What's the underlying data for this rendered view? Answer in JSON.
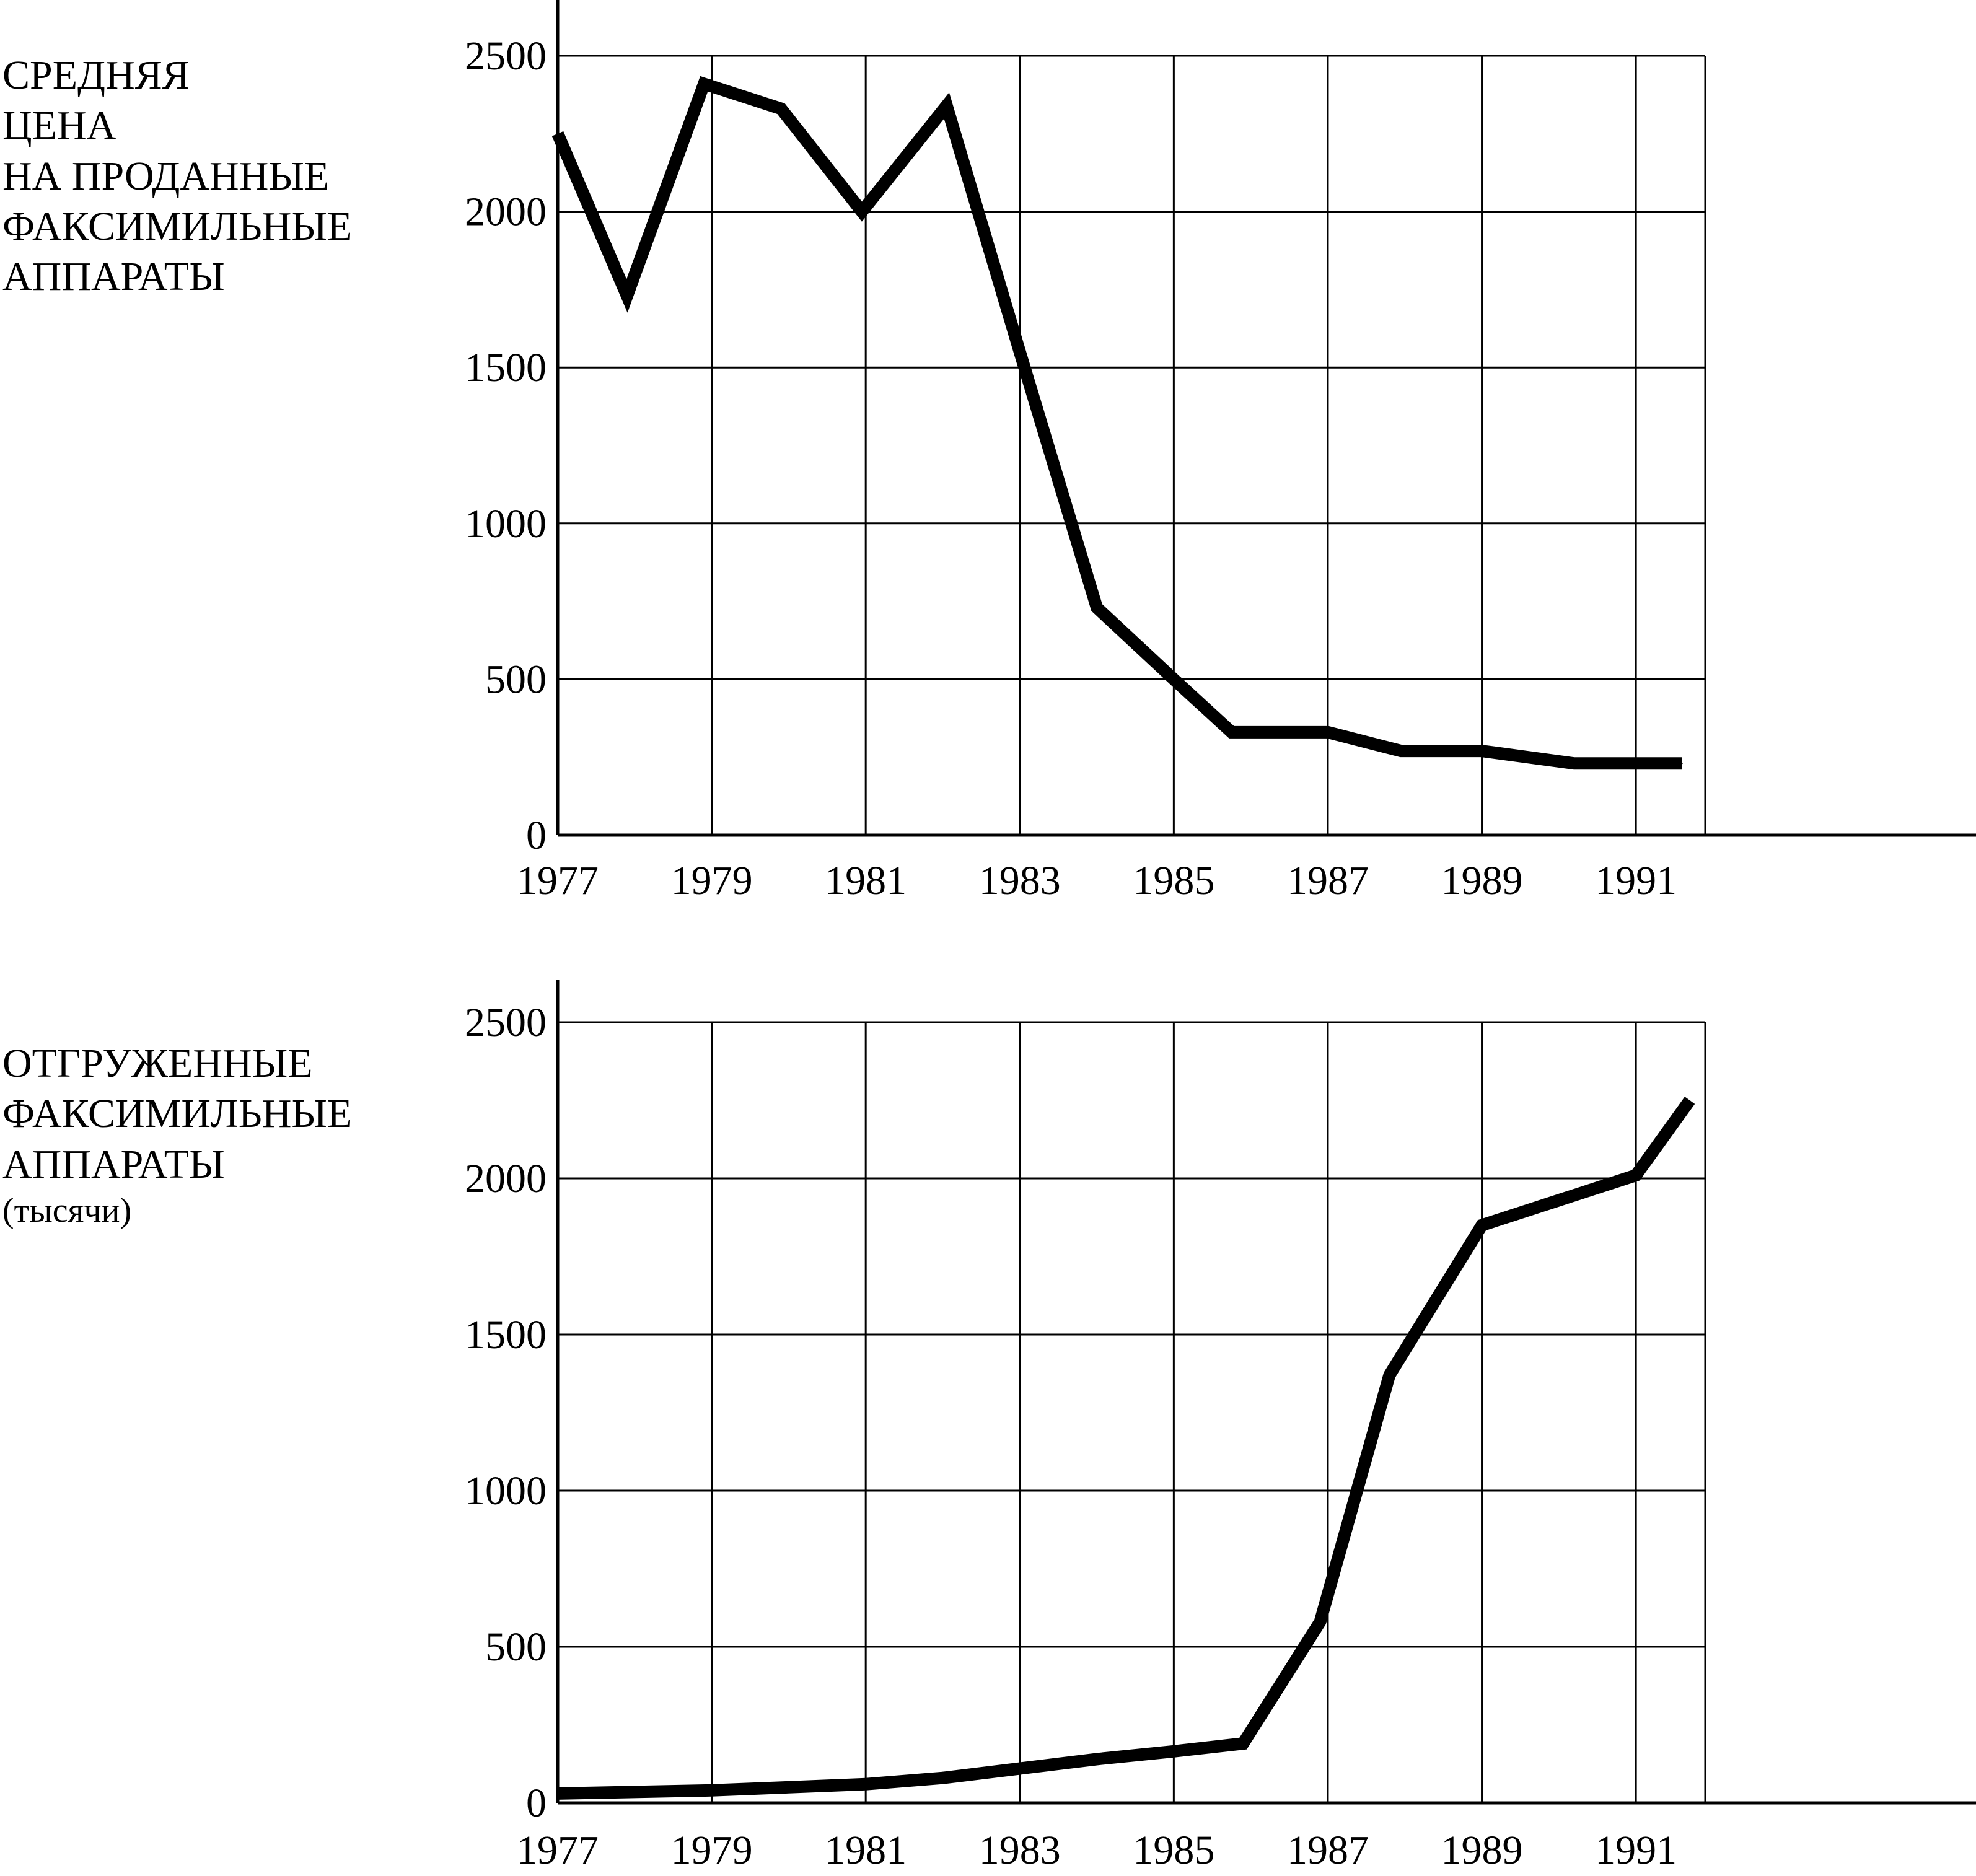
{
  "chart_data": [
    {
      "type": "line",
      "title": "",
      "ylabel_lines": [
        "СРЕДНЯЯ",
        "ЦЕНА",
        "НА ПРОДАННЫЕ",
        "ФАКСИМИЛЬНЫЕ",
        "АППАРАТЫ"
      ],
      "ylabel_sub": "",
      "xlabel": "",
      "x_ticks": [
        "1977",
        "1979",
        "1981",
        "1983",
        "1985",
        "1987",
        "1989",
        "1991"
      ],
      "y_ticks": [
        "0",
        "500",
        "1000",
        "1500",
        "2000",
        "2500"
      ],
      "xlim": [
        1977,
        1991.9
      ],
      "ylim": [
        0,
        2500
      ],
      "grid": true,
      "line_color": "#000000",
      "series": [
        {
          "x": [
            1977,
            1977.9,
            1978.9,
            1979.9,
            1980.95,
            1982.05,
            1983.0,
            1984.0,
            1985.0,
            1985.75,
            1987.0,
            1987.95,
            1989.0,
            1990.2,
            1991.6
          ],
          "values": [
            2250,
            1730,
            2410,
            2330,
            2000,
            2340,
            1550,
            730,
            500,
            330,
            330,
            270,
            270,
            230,
            230
          ]
        }
      ]
    },
    {
      "type": "line",
      "title": "",
      "ylabel_lines": [
        "ОТГРУЖЕННЫЕ",
        "ФАКСИМИЛЬНЫЕ",
        "АППАРАТЫ"
      ],
      "ylabel_sub": "(тысячи)",
      "xlabel": "",
      "x_ticks": [
        "1977",
        "1979",
        "1981",
        "1983",
        "1985",
        "1987",
        "1989",
        "1991"
      ],
      "y_ticks": [
        "0",
        "500",
        "1000",
        "1500",
        "2000",
        "2500"
      ],
      "xlim": [
        1977,
        1991.9
      ],
      "ylim": [
        0,
        2500
      ],
      "grid": true,
      "line_color": "#000000",
      "series": [
        {
          "x": [
            1977,
            1979,
            1981,
            1982,
            1983,
            1984,
            1985,
            1985.9,
            1986.9,
            1987.8,
            1989.0,
            1990.0,
            1991.0,
            1991.7
          ],
          "values": [
            30,
            40,
            60,
            80,
            110,
            140,
            165,
            190,
            580,
            1370,
            1850,
            1930,
            2010,
            2250
          ]
        }
      ]
    }
  ]
}
